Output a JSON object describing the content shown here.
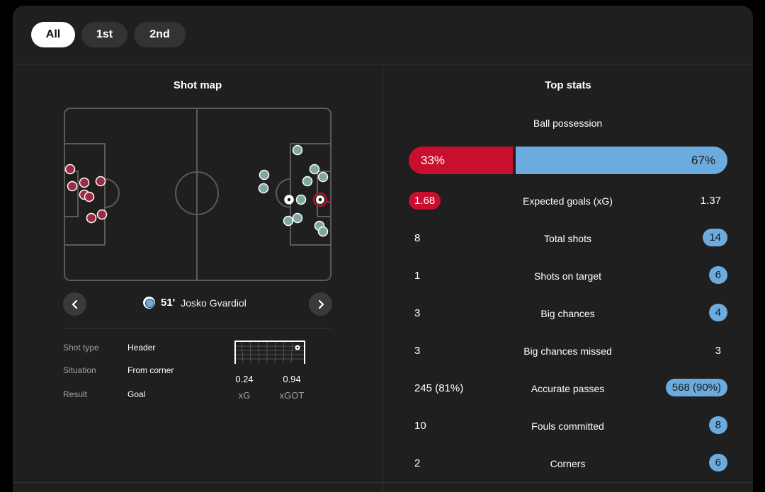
{
  "filters": [
    "All",
    "1st",
    "2nd"
  ],
  "shot_map": {
    "title": "Shot map",
    "selected_shot": {
      "minute": "51'",
      "player": "Josko Gvardiol",
      "details": [
        {
          "label": "Shot type",
          "value": "Header"
        },
        {
          "label": "Situation",
          "value": "From corner"
        },
        {
          "label": "Result",
          "value": "Goal"
        }
      ],
      "xg": "0.24",
      "xg_label": "xG",
      "xgot": "0.94",
      "xgot_label": "xGOT"
    }
  },
  "top_stats": {
    "title": "Top stats",
    "possession": {
      "label": "Ball possession",
      "home": "33%",
      "away": "67%"
    },
    "rows": [
      {
        "label": "Expected goals (xG)",
        "home": "1.68",
        "away": "1.37"
      },
      {
        "label": "Total shots",
        "home": "8",
        "away": "14"
      },
      {
        "label": "Shots on target",
        "home": "1",
        "away": "6"
      },
      {
        "label": "Big chances",
        "home": "3",
        "away": "4"
      },
      {
        "label": "Big chances missed",
        "home": "3",
        "away": "3"
      },
      {
        "label": "Accurate passes",
        "home": "245 (81%)",
        "away": "568 (90%)"
      },
      {
        "label": "Fouls committed",
        "home": "10",
        "away": "8"
      },
      {
        "label": "Corners",
        "home": "2",
        "away": "6"
      }
    ]
  },
  "colors": {
    "home": "#c8102e",
    "away": "#6cabdd",
    "card": "#1f1f1f"
  },
  "icons": [
    "chevron-left-icon",
    "chevron-right-icon",
    "club-crest-icon",
    "football-icon"
  ]
}
